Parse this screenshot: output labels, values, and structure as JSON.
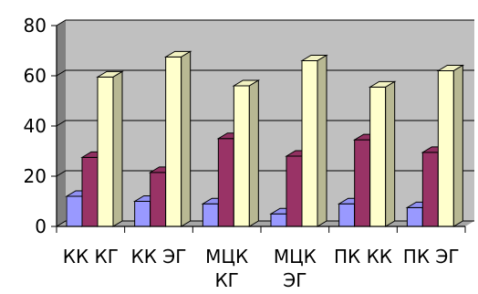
{
  "chart_data": {
    "type": "bar",
    "categories": [
      [
        "КК КГ"
      ],
      [
        "КК ЭГ"
      ],
      [
        "МЦК",
        "КГ"
      ],
      [
        "МЦК",
        "ЭГ"
      ],
      [
        "ПК КК"
      ],
      [
        "ПК ЭГ"
      ]
    ],
    "series": [
      {
        "values": [
          12,
          10,
          9,
          5,
          9,
          7.5
        ],
        "color": "#9999ff"
      },
      {
        "values": [
          27.5,
          21.5,
          35,
          28,
          34.5,
          29.5
        ],
        "color": "#993366"
      },
      {
        "values": [
          59.5,
          67.5,
          56,
          66,
          55.5,
          62
        ],
        "color": "#ffffcc"
      }
    ],
    "yticks": [
      0,
      20,
      40,
      60,
      80
    ],
    "ylim": [
      0,
      80
    ],
    "grid": true,
    "legend": "none",
    "style": "3d-clustered-column",
    "colors": {
      "wall": "#c0c0c0",
      "wall_side": "#808080",
      "floor": "#a6a6a6",
      "grid": "#000000"
    }
  }
}
